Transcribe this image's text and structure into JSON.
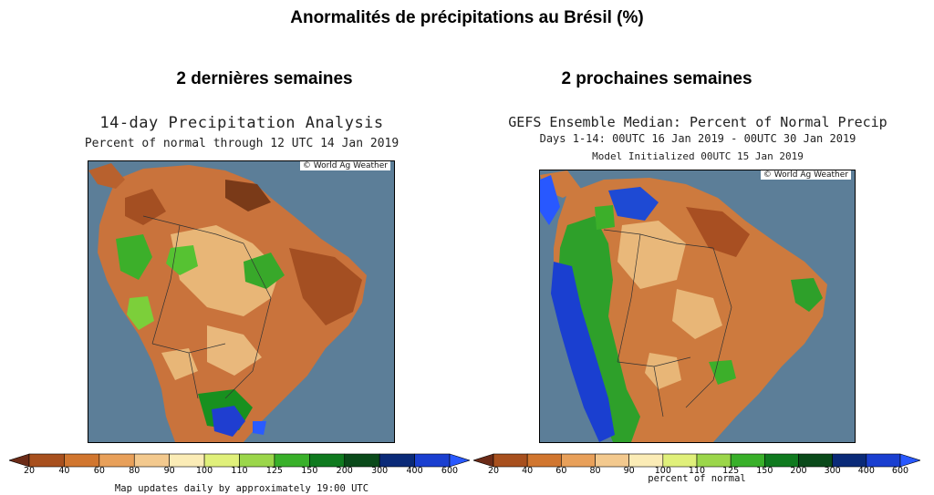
{
  "title": "Anormalités de précipitations au Brésil (%)",
  "left_panel": {
    "heading": "2 dernières semaines",
    "map_title": "14-day Precipitation Analysis",
    "map_subtitle": "Percent of normal through 12 UTC 14 Jan 2019",
    "credit": "© World Ag Weather",
    "footer": "Map updates daily by approximately 19:00 UTC"
  },
  "right_panel": {
    "heading": "2 prochaines semaines",
    "map_title": "GEFS Ensemble Median: Percent of Normal Precip",
    "map_subtitle": "Days 1-14: 00UTC 16 Jan 2019 - 00UTC 30 Jan 2019",
    "map_subtitle2": "Model Initialized 00UTC 15 Jan 2019",
    "credit": "© World Ag Weather",
    "footer": "percent of normal"
  },
  "legend": {
    "ticks": [
      "20",
      "40",
      "60",
      "80",
      "90",
      "100",
      "110",
      "125",
      "150",
      "200",
      "300",
      "400",
      "600"
    ],
    "colors": [
      "#6b2b17",
      "#a8501e",
      "#d1762f",
      "#e8a05a",
      "#f3c98e",
      "#fbecb6",
      "#e0f07a",
      "#9bd64a",
      "#39b02a",
      "#0f7a1f",
      "#0a4a1a",
      "#0a2a78",
      "#1a3fd0",
      "#2858ff"
    ]
  },
  "colors": {
    "ocean": "#5c7e98",
    "land_dry": "#c8733a",
    "land_wet": "#1e9a2a"
  }
}
